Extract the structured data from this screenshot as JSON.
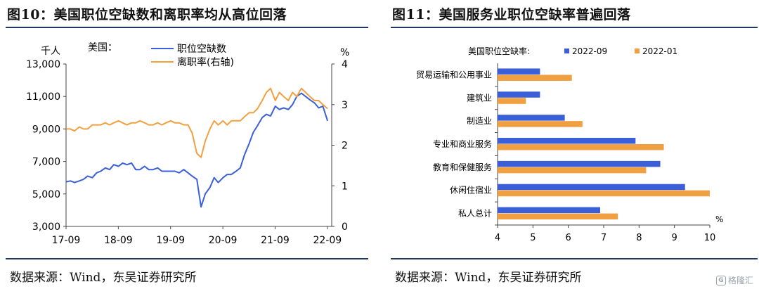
{
  "left": {
    "title": "图10：美国职位空缺数和离职率均从高位回落",
    "source": "数据来源：Wind，东吴证券研究所"
  },
  "right": {
    "title": "图11：美国服务业职位空缺率普遍回落",
    "source": "数据来源：Wind，东吴证券研究所"
  },
  "watermark": {
    "icon": "G",
    "text": "格隆汇"
  },
  "colors": {
    "blue": "#3a5fd9",
    "orange": "#f0a040",
    "axis": "#444444",
    "rule": "#1f3864"
  },
  "chart_data": [
    {
      "type": "line",
      "unit_left": "千人",
      "unit_right": "%",
      "legend_prefix": "美国：",
      "legend_position": "top-left",
      "grid": false,
      "x_ticks": [
        "17-09",
        "18-09",
        "19-09",
        "20-09",
        "21-09",
        "22-09"
      ],
      "x_range": [
        2017.667,
        2022.75
      ],
      "ylim_left": [
        3000,
        13000
      ],
      "yticks_left": [
        "3,000",
        "5,000",
        "7,000",
        "9,000",
        "11,000",
        "13,000"
      ],
      "ylim_right": [
        0,
        4
      ],
      "yticks_right": [
        "0",
        "1",
        "2",
        "3",
        "4"
      ],
      "series": [
        {
          "name": "职位空缺数",
          "axis": "left",
          "color": "#3a5fd9",
          "x": [
            2017.67,
            2017.75,
            2017.83,
            2017.92,
            2018.0,
            2018.08,
            2018.17,
            2018.25,
            2018.33,
            2018.42,
            2018.5,
            2018.58,
            2018.67,
            2018.75,
            2018.83,
            2018.92,
            2019.0,
            2019.08,
            2019.17,
            2019.25,
            2019.33,
            2019.42,
            2019.5,
            2019.58,
            2019.67,
            2019.75,
            2019.83,
            2019.92,
            2020.0,
            2020.08,
            2020.17,
            2020.25,
            2020.33,
            2020.42,
            2020.5,
            2020.58,
            2020.67,
            2020.75,
            2020.83,
            2020.92,
            2021.0,
            2021.08,
            2021.17,
            2021.25,
            2021.33,
            2021.42,
            2021.5,
            2021.58,
            2021.67,
            2021.75,
            2021.83,
            2021.92,
            2022.0,
            2022.08,
            2022.17,
            2022.25,
            2022.33,
            2022.42,
            2022.5,
            2022.58,
            2022.67
          ],
          "values": [
            5750,
            5800,
            5700,
            5800,
            5900,
            6100,
            6000,
            6300,
            6400,
            6600,
            6500,
            6800,
            6700,
            6900,
            6800,
            6900,
            6500,
            6500,
            6700,
            6500,
            6500,
            6600,
            6400,
            6400,
            6400,
            6400,
            6300,
            6500,
            6300,
            6100,
            5900,
            4200,
            5000,
            5400,
            6000,
            5700,
            6000,
            6200,
            6200,
            6400,
            6600,
            7400,
            8100,
            8800,
            9200,
            9700,
            9900,
            9800,
            10400,
            10200,
            10300,
            10200,
            10500,
            11000,
            11200,
            11000,
            10800,
            10600,
            10300,
            10400,
            9500
          ]
        },
        {
          "name": "离职率(右轴)",
          "axis": "right",
          "color": "#f0a040",
          "x": [
            2017.67,
            2017.75,
            2017.83,
            2017.92,
            2018.0,
            2018.08,
            2018.17,
            2018.25,
            2018.33,
            2018.42,
            2018.5,
            2018.58,
            2018.67,
            2018.75,
            2018.83,
            2018.92,
            2019.0,
            2019.08,
            2019.17,
            2019.25,
            2019.33,
            2019.42,
            2019.5,
            2019.58,
            2019.67,
            2019.75,
            2019.83,
            2019.92,
            2020.0,
            2020.08,
            2020.17,
            2020.25,
            2020.33,
            2020.42,
            2020.5,
            2020.58,
            2020.67,
            2020.75,
            2020.83,
            2020.92,
            2021.0,
            2021.08,
            2021.17,
            2021.25,
            2021.33,
            2021.42,
            2021.5,
            2021.58,
            2021.67,
            2021.75,
            2021.83,
            2021.92,
            2022.0,
            2022.08,
            2022.17,
            2022.25,
            2022.33,
            2022.42,
            2022.5,
            2022.58,
            2022.67
          ],
          "values": [
            2.4,
            2.4,
            2.35,
            2.45,
            2.4,
            2.4,
            2.5,
            2.5,
            2.5,
            2.55,
            2.5,
            2.55,
            2.6,
            2.55,
            2.5,
            2.55,
            2.55,
            2.6,
            2.55,
            2.5,
            2.5,
            2.55,
            2.5,
            2.55,
            2.6,
            2.55,
            2.55,
            2.5,
            2.5,
            2.3,
            1.8,
            1.7,
            2.1,
            2.4,
            2.6,
            2.5,
            2.6,
            2.5,
            2.6,
            2.6,
            2.6,
            2.7,
            2.8,
            2.8,
            2.9,
            3.1,
            3.3,
            3.4,
            3.1,
            3.3,
            3.2,
            3.1,
            3.3,
            3.2,
            3.4,
            3.3,
            3.2,
            3.1,
            3.1,
            3.0,
            2.9
          ]
        }
      ]
    },
    {
      "type": "bar",
      "orientation": "horizontal",
      "legend_prefix": "美国职位空缺率:",
      "legend_position": "top",
      "unit": "%",
      "grid": false,
      "categories": [
        "贸易运输和公用事业",
        "建筑业",
        "制造业",
        "专业和商业服务",
        "教育和保健服务",
        "休闲住宿业",
        "私人总计"
      ],
      "xlim": [
        4,
        10
      ],
      "x_ticks": [
        "4",
        "5",
        "6",
        "7",
        "8",
        "9",
        "10"
      ],
      "series": [
        {
          "name": "2022-09",
          "color": "#3a5fd9",
          "values": [
            5.2,
            5.2,
            5.9,
            7.9,
            8.6,
            9.3,
            6.9
          ]
        },
        {
          "name": "2022-01",
          "color": "#f0a040",
          "values": [
            6.1,
            4.8,
            6.4,
            8.7,
            8.2,
            10.0,
            7.4
          ]
        }
      ]
    }
  ]
}
